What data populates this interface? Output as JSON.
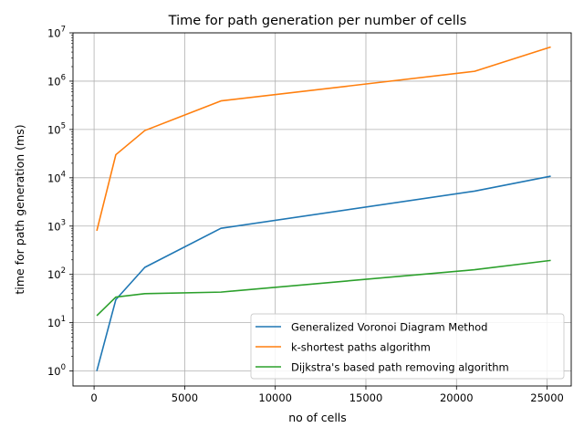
{
  "chart_data": {
    "type": "line",
    "title": "Time for path generation per number of cells",
    "xlabel": "no of cells",
    "ylabel": "time for path generation (ms)",
    "x_scale": "linear",
    "y_scale": "log",
    "xlim": [
      -1163,
      26330
    ],
    "ylim": [
      0.49,
      10000000
    ],
    "grid": true,
    "legend_position": "lower-right",
    "x_ticks": [
      {
        "value": 0,
        "label": "0"
      },
      {
        "value": 5000,
        "label": "5000"
      },
      {
        "value": 10000,
        "label": "10000"
      },
      {
        "value": 15000,
        "label": "15000"
      },
      {
        "value": 20000,
        "label": "20000"
      },
      {
        "value": 25000,
        "label": "25000"
      }
    ],
    "y_ticks": [
      {
        "value": 1,
        "base": "10",
        "exp": "0"
      },
      {
        "value": 10,
        "base": "10",
        "exp": "1"
      },
      {
        "value": 100,
        "base": "10",
        "exp": "2"
      },
      {
        "value": 1000,
        "base": "10",
        "exp": "3"
      },
      {
        "value": 10000,
        "base": "10",
        "exp": "4"
      },
      {
        "value": 100000,
        "base": "10",
        "exp": "5"
      },
      {
        "value": 1000000,
        "base": "10",
        "exp": "6"
      },
      {
        "value": 10000000,
        "base": "10",
        "exp": "7"
      }
    ],
    "series": [
      {
        "name": "Generalized Voronoi Diagram Method",
        "color": "#1f77b4",
        "x": [
          150,
          1200,
          2800,
          7000,
          21000,
          25200
        ],
        "y": [
          1,
          30,
          140,
          900,
          5300,
          10800
        ]
      },
      {
        "name": "k-shortest paths algorithm",
        "color": "#ff7f0e",
        "x": [
          150,
          1200,
          2800,
          7000,
          21000,
          25200
        ],
        "y": [
          800,
          30000,
          95000,
          390000,
          1600000,
          5100000
        ]
      },
      {
        "name": "Dijkstra's based path removing algorithm",
        "color": "#2ca02c",
        "x": [
          150,
          1200,
          2800,
          7000,
          21000,
          25200
        ],
        "y": [
          14,
          34,
          40,
          43,
          125,
          195
        ]
      }
    ]
  }
}
